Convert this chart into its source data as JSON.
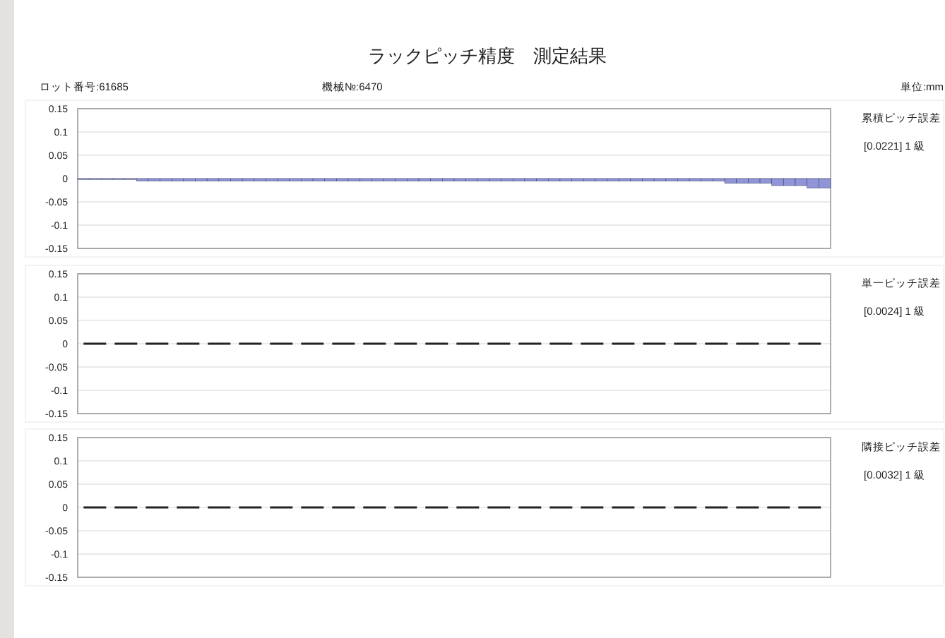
{
  "chart_data": [
    {
      "type": "other",
      "title": "ラックピッチ精度　測定結果",
      "annotations": [
        "ロット番号:61685",
        "機械№:6470",
        "単位:mm"
      ]
    },
    {
      "type": "bar",
      "ylabel": "累積ピッチ誤差",
      "annotations": [
        "[0.0221] 1 級"
      ],
      "categories": [
        null,
        null,
        null,
        null,
        null,
        null,
        null,
        null,
        null,
        null,
        null,
        null,
        null,
        null,
        null,
        null,
        null,
        null,
        null,
        null,
        null,
        null,
        null,
        null,
        null,
        null,
        null,
        null,
        null,
        null,
        null,
        null,
        null,
        null,
        null,
        null,
        null,
        null,
        null,
        null,
        null,
        null,
        null,
        null,
        null,
        null,
        null,
        null,
        null,
        null,
        null,
        null,
        null,
        null,
        null,
        null,
        null,
        null,
        null,
        null,
        null,
        null,
        null,
        null
      ],
      "values": [
        0,
        0,
        0,
        0,
        0,
        -0.005,
        -0.005,
        -0.005,
        -0.005,
        -0.005,
        -0.005,
        -0.005,
        -0.005,
        -0.005,
        -0.005,
        -0.005,
        -0.005,
        -0.005,
        -0.005,
        -0.005,
        -0.005,
        -0.005,
        -0.005,
        -0.005,
        -0.005,
        -0.005,
        -0.005,
        -0.005,
        -0.005,
        -0.005,
        -0.005,
        -0.005,
        -0.005,
        -0.005,
        -0.005,
        -0.005,
        -0.005,
        -0.005,
        -0.005,
        -0.005,
        -0.005,
        -0.005,
        -0.005,
        -0.005,
        -0.005,
        -0.005,
        -0.005,
        -0.005,
        -0.005,
        -0.005,
        -0.005,
        -0.005,
        -0.005,
        -0.005,
        -0.005,
        -0.01,
        -0.01,
        -0.01,
        -0.01,
        -0.015,
        -0.015,
        -0.015,
        -0.02,
        -0.02
      ],
      "color": "#8f95d6",
      "ylim": [
        -0.15,
        0.15
      ],
      "yticks": [
        -0.15,
        -0.1,
        -0.05,
        0,
        0.05,
        0.1,
        0.15
      ],
      "grid": "y"
    },
    {
      "type": "line",
      "ylabel": "単一ピッチ誤差",
      "annotations": [
        "[0.0024] 1 級"
      ],
      "categories": [
        null,
        null,
        null,
        null,
        null,
        null,
        null,
        null,
        null,
        null,
        null,
        null,
        null,
        null,
        null,
        null,
        null,
        null,
        null,
        null,
        null,
        null,
        null,
        null,
        null,
        null,
        null,
        null,
        null,
        null,
        null,
        null,
        null,
        null,
        null,
        null,
        null,
        null,
        null,
        null,
        null,
        null,
        null,
        null,
        null,
        null,
        null,
        null,
        null,
        null,
        null,
        null,
        null,
        null,
        null,
        null,
        null,
        null,
        null,
        null,
        null,
        null,
        null,
        null
      ],
      "values": [
        0,
        0,
        0,
        0,
        0,
        0,
        0,
        0,
        0,
        0,
        0,
        0,
        0,
        0,
        0,
        0,
        0,
        0,
        0,
        0,
        0,
        0,
        0,
        0,
        0,
        0,
        0,
        0,
        0,
        0,
        0,
        0,
        0,
        0,
        0,
        0,
        0,
        0,
        0,
        0,
        0,
        0,
        0,
        0,
        0,
        0,
        0,
        0,
        0,
        0,
        0,
        0,
        0,
        0,
        0,
        0,
        0,
        0,
        0,
        0,
        0,
        0,
        0,
        0
      ],
      "line_style": "dashed",
      "color": "#222222",
      "ylim": [
        -0.15,
        0.15
      ],
      "yticks": [
        -0.15,
        -0.1,
        -0.05,
        0,
        0.05,
        0.1,
        0.15
      ],
      "grid": "y"
    },
    {
      "type": "line",
      "ylabel": "隣接ピッチ誤差",
      "annotations": [
        "[0.0032] 1 級"
      ],
      "categories": [
        null,
        null,
        null,
        null,
        null,
        null,
        null,
        null,
        null,
        null,
        null,
        null,
        null,
        null,
        null,
        null,
        null,
        null,
        null,
        null,
        null,
        null,
        null,
        null,
        null,
        null,
        null,
        null,
        null,
        null,
        null,
        null,
        null,
        null,
        null,
        null,
        null,
        null,
        null,
        null,
        null,
        null,
        null,
        null,
        null,
        null,
        null,
        null,
        null,
        null,
        null,
        null,
        null,
        null,
        null,
        null,
        null,
        null,
        null,
        null,
        null,
        null,
        null,
        null
      ],
      "values": [
        0,
        0,
        0,
        0,
        0,
        0,
        0,
        0,
        0,
        0,
        0,
        0,
        0,
        0,
        0,
        0,
        0,
        0,
        0,
        0,
        0,
        0,
        0,
        0,
        0,
        0,
        0,
        0,
        0,
        0,
        0,
        0,
        0,
        0,
        0,
        0,
        0,
        0,
        0,
        0,
        0,
        0,
        0,
        0,
        0,
        0,
        0,
        0,
        0,
        0,
        0,
        0,
        0,
        0,
        0,
        0,
        0,
        0,
        0,
        0,
        0,
        0,
        0,
        0
      ],
      "line_style": "dashed",
      "color": "#222222",
      "ylim": [
        -0.15,
        0.15
      ],
      "yticks": [
        -0.15,
        -0.1,
        -0.05,
        0,
        0.05,
        0.1,
        0.15
      ],
      "grid": "y"
    }
  ]
}
